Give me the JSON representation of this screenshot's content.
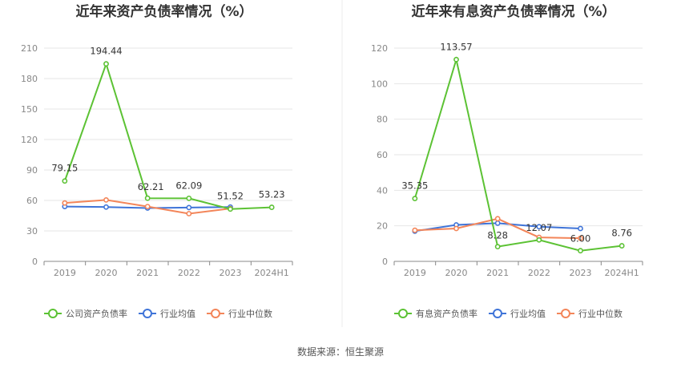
{
  "source": "数据来源：恒生聚源",
  "colors": {
    "company": "#5cc234",
    "industry_avg": "#3f74d8",
    "industry_median": "#f38559"
  },
  "chart_data": [
    {
      "type": "line",
      "title": "近年来资产负债率情况（%）",
      "categories": [
        "2019",
        "2020",
        "2021",
        "2022",
        "2023",
        "2024H1"
      ],
      "yticks": [
        0,
        30,
        60,
        90,
        120,
        150,
        180,
        210
      ],
      "ylim": [
        0,
        210
      ],
      "grid": true,
      "legend_position": "bottom",
      "series": [
        {
          "name": "公司资产负债率",
          "color": "#5cc234",
          "values": [
            79.15,
            194.44,
            62.21,
            62.09,
            51.52,
            53.23
          ],
          "labels": [
            "79.15",
            "194.44",
            "62.21",
            "62.09",
            "51.52",
            "53.23"
          ]
        },
        {
          "name": "行业均值",
          "color": "#3f74d8",
          "values": [
            54,
            53.5,
            52.5,
            53,
            53.5,
            null
          ]
        },
        {
          "name": "行业中位数",
          "color": "#f38559",
          "values": [
            57.5,
            60.5,
            54,
            47,
            52,
            null
          ]
        }
      ]
    },
    {
      "type": "line",
      "title": "近年来有息资产负债率情况（%）",
      "categories": [
        "2019",
        "2020",
        "2021",
        "2022",
        "2023",
        "2024H1"
      ],
      "yticks": [
        0,
        20,
        40,
        60,
        80,
        100,
        120
      ],
      "ylim": [
        0,
        120
      ],
      "grid": true,
      "legend_position": "bottom",
      "series": [
        {
          "name": "有息资产负债率",
          "color": "#5cc234",
          "values": [
            35.35,
            113.57,
            8.28,
            12.07,
            6.0,
            8.76
          ],
          "labels": [
            "35.35",
            "113.57",
            "8.28",
            "12.07",
            "6.00",
            "8.76"
          ]
        },
        {
          "name": "行业均值",
          "color": "#3f74d8",
          "values": [
            17,
            20.5,
            21.5,
            19.5,
            18.5,
            null
          ]
        },
        {
          "name": "行业中位数",
          "color": "#f38559",
          "values": [
            17.5,
            18.5,
            24,
            13.5,
            13,
            null
          ]
        }
      ]
    }
  ]
}
